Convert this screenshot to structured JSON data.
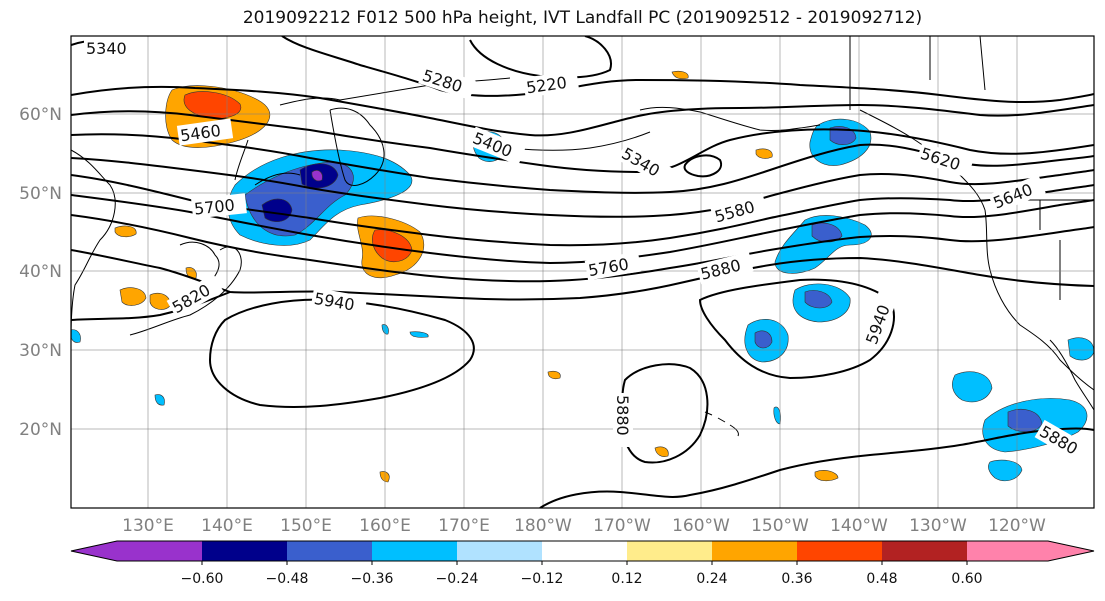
{
  "title": "2019092212 F012 500 hPa height, IVT Landfall PC (2019092512 - 2019092712)",
  "map": {
    "lat_labels": [
      "60°N",
      "50°N",
      "40°N",
      "30°N",
      "20°N"
    ],
    "lon_labels": [
      "130°E",
      "140°E",
      "150°E",
      "160°E",
      "170°E",
      "180°W",
      "170°W",
      "160°W",
      "150°W",
      "140°W",
      "130°W",
      "120°W"
    ],
    "contour_labels": [
      "5340",
      "5280",
      "5220",
      "5460",
      "5400",
      "5340",
      "5620",
      "5700",
      "5580",
      "5640",
      "5760",
      "5880",
      "5820",
      "5940",
      "5940",
      "5880",
      "5880"
    ]
  },
  "colorbar": {
    "ticks": [
      "−0.60",
      "−0.48",
      "−0.36",
      "−0.24",
      "−0.12",
      "0.12",
      "0.24",
      "0.36",
      "0.48",
      "0.60"
    ],
    "colors": [
      "#9932cc",
      "#00008b",
      "#3a5fcd",
      "#00bfff",
      "#b0e2ff",
      "#ffffff",
      "#ffec8b",
      "#ffa500",
      "#ff4500",
      "#b22222",
      "#ff82ab"
    ]
  }
}
